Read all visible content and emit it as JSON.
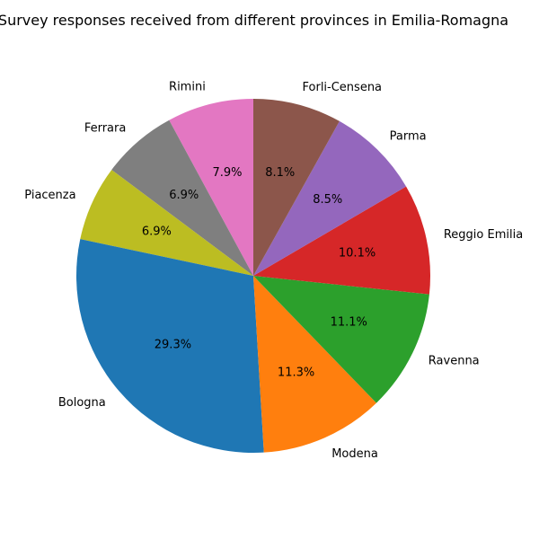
{
  "chart_data": {
    "type": "pie",
    "title": "Survey responses received from different provinces in Emilia-Romagna",
    "start_angle_deg": 90,
    "direction": "counterclockwise",
    "legend": "none",
    "slices": [
      {
        "label": "Rimini",
        "percent": 7.9,
        "color": "#e377c2"
      },
      {
        "label": "Ferrara",
        "percent": 6.9,
        "color": "#7f7f7f"
      },
      {
        "label": "Piacenza",
        "percent": 6.9,
        "color": "#bcbd22"
      },
      {
        "label": "Bologna",
        "percent": 29.3,
        "color": "#1f77b4"
      },
      {
        "label": "Modena",
        "percent": 11.3,
        "color": "#ff7f0e"
      },
      {
        "label": "Ravenna",
        "percent": 11.1,
        "color": "#2ca02c"
      },
      {
        "label": "Reggio Emilia",
        "percent": 10.1,
        "color": "#d62728"
      },
      {
        "label": "Parma",
        "percent": 8.5,
        "color": "#9467bd"
      },
      {
        "label": "Forli-Censena",
        "percent": 8.1,
        "color": "#8c564b"
      }
    ]
  }
}
